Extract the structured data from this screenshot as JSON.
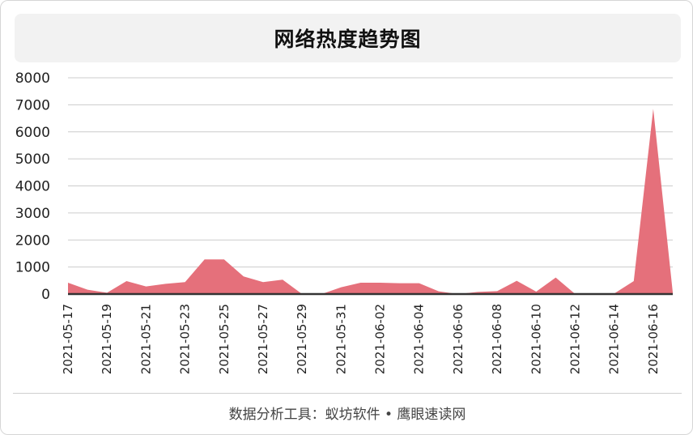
{
  "title": "网络热度趋势图",
  "footer": "数据分析工具：蚁坊软件 • 鹰眼速读网",
  "colors": {
    "area": "#e5707b",
    "grid": "#cccccc",
    "baseline": "#333333"
  },
  "chart_data": {
    "type": "area",
    "title": "网络热度趋势图",
    "xlabel": "",
    "ylabel": "",
    "ylim": [
      0,
      8000
    ],
    "yticks": [
      0,
      1000,
      2000,
      3000,
      4000,
      5000,
      6000,
      7000,
      8000
    ],
    "grid": true,
    "x": [
      "2021-05-17",
      "2021-05-18",
      "2021-05-19",
      "2021-05-20",
      "2021-05-21",
      "2021-05-22",
      "2021-05-23",
      "2021-05-24",
      "2021-05-25",
      "2021-05-26",
      "2021-05-27",
      "2021-05-28",
      "2021-05-29",
      "2021-05-30",
      "2021-05-31",
      "2021-06-01",
      "2021-06-02",
      "2021-06-03",
      "2021-06-04",
      "2021-06-05",
      "2021-06-06",
      "2021-06-07",
      "2021-06-08",
      "2021-06-09",
      "2021-06-10",
      "2021-06-11",
      "2021-06-12",
      "2021-06-13",
      "2021-06-14",
      "2021-06-15",
      "2021-06-16",
      "2021-06-17"
    ],
    "xtick_labels": [
      "2021-05-17",
      "2021-05-19",
      "2021-05-21",
      "2021-05-23",
      "2021-05-25",
      "2021-05-27",
      "2021-05-29",
      "2021-05-31",
      "2021-06-02",
      "2021-06-04",
      "2021-06-06",
      "2021-06-08",
      "2021-06-10",
      "2021-06-12",
      "2021-06-14",
      "2021-06-16"
    ],
    "series": [
      {
        "values": [
          420,
          160,
          50,
          480,
          280,
          380,
          440,
          1280,
          1280,
          650,
          440,
          530,
          0,
          0,
          250,
          420,
          420,
          400,
          400,
          100,
          0,
          80,
          110,
          490,
          90,
          610,
          0,
          0,
          20,
          480,
          6850,
          60
        ]
      }
    ]
  }
}
